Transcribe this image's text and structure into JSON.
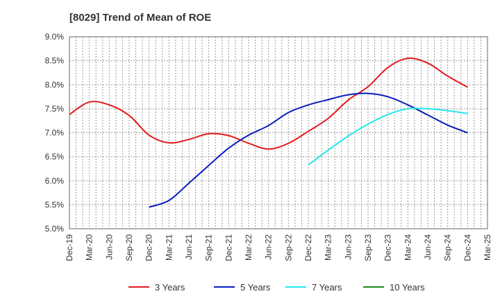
{
  "chart_data": {
    "type": "line",
    "title": "[8029]  Trend of Mean of ROE",
    "xlabel": "",
    "ylabel": "",
    "categories": [
      "Dec-19",
      "Mar-20",
      "Jun-20",
      "Sep-20",
      "Dec-20",
      "Mar-21",
      "Jun-21",
      "Sep-21",
      "Dec-21",
      "Mar-22",
      "Jun-22",
      "Sep-22",
      "Dec-22",
      "Mar-23",
      "Jun-23",
      "Sep-23",
      "Dec-23",
      "Mar-24",
      "Jun-24",
      "Sep-24",
      "Dec-24",
      "Mar-25"
    ],
    "y_ticks": [
      "5.0%",
      "5.5%",
      "6.0%",
      "6.5%",
      "7.0%",
      "7.5%",
      "8.0%",
      "8.5%",
      "9.0%"
    ],
    "ylim": [
      5.0,
      9.0
    ],
    "grid": true,
    "legend_position": "bottom",
    "series": [
      {
        "name": "3 Years",
        "color": "#e31a1c",
        "values": [
          7.38,
          7.64,
          7.58,
          7.36,
          6.95,
          6.79,
          6.86,
          6.98,
          6.94,
          6.78,
          6.66,
          6.78,
          7.03,
          7.3,
          7.68,
          7.96,
          8.36,
          8.55,
          8.45,
          8.18,
          7.95,
          null
        ]
      },
      {
        "name": "5 Years",
        "color": "#0a1bbf",
        "values": [
          null,
          null,
          null,
          null,
          5.45,
          5.59,
          5.95,
          6.32,
          6.68,
          6.95,
          7.15,
          7.42,
          7.58,
          7.69,
          7.79,
          7.82,
          7.75,
          7.58,
          7.37,
          7.16,
          7.0,
          null
        ]
      },
      {
        "name": "7 Years",
        "color": "#22e6ea",
        "values": [
          null,
          null,
          null,
          null,
          null,
          null,
          null,
          null,
          null,
          null,
          null,
          null,
          6.33,
          6.64,
          6.93,
          7.18,
          7.38,
          7.5,
          7.5,
          7.46,
          7.4,
          null
        ]
      },
      {
        "name": "10 Years",
        "color": "#1a8a1a",
        "values": [
          null,
          null,
          null,
          null,
          null,
          null,
          null,
          null,
          null,
          null,
          null,
          null,
          null,
          null,
          null,
          null,
          null,
          null,
          null,
          null,
          null,
          null
        ]
      }
    ]
  }
}
